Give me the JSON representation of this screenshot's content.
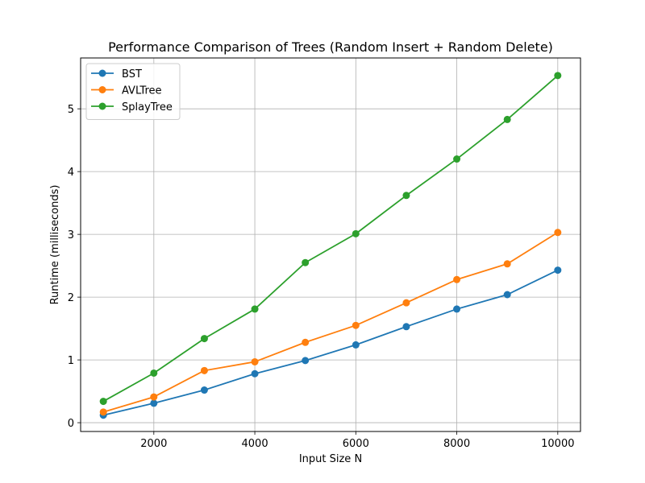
{
  "chart_data": {
    "type": "line",
    "title": "Performance Comparison of Trees (Random Insert + Random Delete)",
    "xlabel": "Input Size N",
    "ylabel": "Runtime (milliseconds)",
    "x": [
      1000,
      2000,
      3000,
      4000,
      5000,
      6000,
      7000,
      8000,
      9000,
      10000
    ],
    "xticks": [
      2000,
      4000,
      6000,
      8000,
      10000
    ],
    "yticks": [
      0,
      1,
      2,
      3,
      4,
      5
    ],
    "xlim": [
      550,
      10450
    ],
    "ylim": [
      -0.14,
      5.81
    ],
    "grid": true,
    "legend_position": "upper-left",
    "series": [
      {
        "name": "BST",
        "color": "#1f77b4",
        "marker": "circle",
        "values": [
          0.12,
          0.31,
          0.52,
          0.78,
          0.99,
          1.24,
          1.53,
          1.81,
          2.04,
          2.43
        ]
      },
      {
        "name": "AVLTree",
        "color": "#ff7f0e",
        "marker": "circle",
        "values": [
          0.17,
          0.41,
          0.83,
          0.97,
          1.28,
          1.55,
          1.91,
          2.28,
          2.53,
          3.03
        ]
      },
      {
        "name": "SplayTree",
        "color": "#2ca02c",
        "marker": "circle",
        "values": [
          0.34,
          0.79,
          1.34,
          1.81,
          2.55,
          3.01,
          3.62,
          4.2,
          4.83,
          5.53
        ]
      }
    ]
  }
}
